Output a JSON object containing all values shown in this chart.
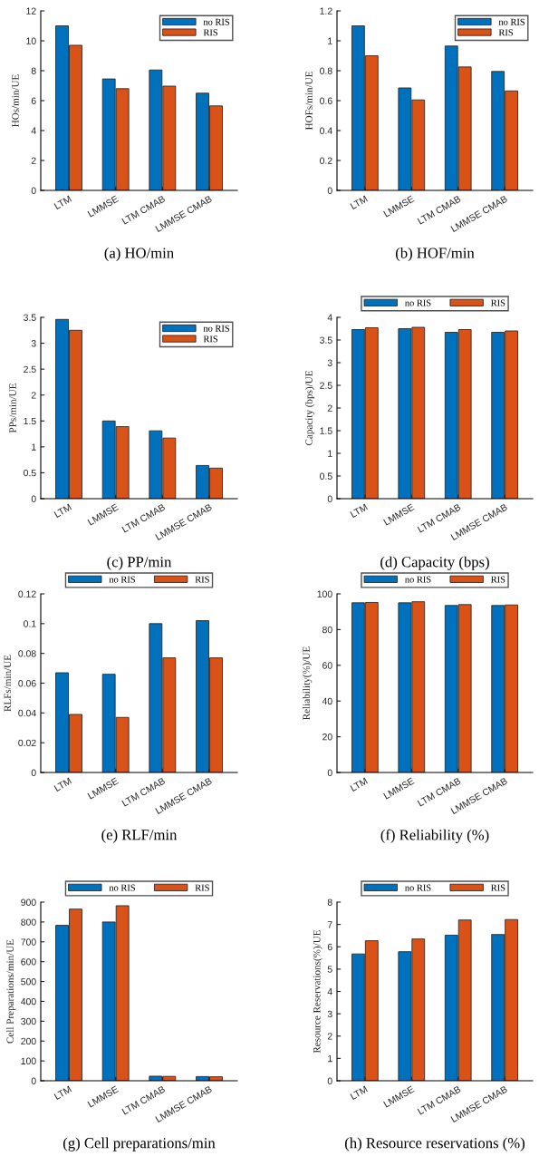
{
  "chart_data": [
    {
      "type": "bar",
      "title": "(a) HO/min",
      "ylabel": "HOs/min/UE",
      "categories": [
        "LTM",
        "LMMSE",
        "LTM CMAB",
        "LMMSE CMAB"
      ],
      "series": [
        {
          "name": "no RIS",
          "color": "#0072bd",
          "values": [
            11.0,
            7.45,
            8.05,
            6.5
          ]
        },
        {
          "name": "RIS",
          "color": "#d95319",
          "values": [
            9.7,
            6.8,
            6.97,
            5.65
          ]
        }
      ],
      "ylim": [
        0,
        12
      ],
      "yticks": [
        0,
        2,
        4,
        6,
        8,
        10,
        12
      ],
      "legend": "top right"
    },
    {
      "type": "bar",
      "title": "(b) HOF/min",
      "ylabel": "HOFs/min/UE",
      "categories": [
        "LTM",
        "LMMSE",
        "LTM CMAB",
        "LMMSE CMAB"
      ],
      "series": [
        {
          "name": "no RIS",
          "color": "#0072bd",
          "values": [
            1.1,
            0.685,
            0.965,
            0.795
          ]
        },
        {
          "name": "RIS",
          "color": "#d95319",
          "values": [
            0.9,
            0.605,
            0.825,
            0.665
          ]
        }
      ],
      "ylim": [
        0,
        1.2
      ],
      "yticks": [
        0,
        0.2,
        0.4,
        0.6,
        0.8,
        1,
        1.2
      ],
      "legend": "top right"
    },
    {
      "type": "bar",
      "title": "(c) PP/min",
      "ylabel": "PPs/min/UE",
      "categories": [
        "LTM",
        "LMMSE",
        "LTM CMAB",
        "LMMSE CMAB"
      ],
      "series": [
        {
          "name": "no RIS",
          "color": "#0072bd",
          "values": [
            3.46,
            1.5,
            1.31,
            0.64
          ]
        },
        {
          "name": "RIS",
          "color": "#d95319",
          "values": [
            3.25,
            1.39,
            1.17,
            0.59
          ]
        }
      ],
      "ylim": [
        0,
        3.5
      ],
      "yticks": [
        0,
        0.5,
        1,
        1.5,
        2,
        2.5,
        3,
        3.5
      ],
      "legend": "top right"
    },
    {
      "type": "bar",
      "title": "(d) Capacity (bps)",
      "ylabel": "Capacity (bps)/UE",
      "categories": [
        "LTM",
        "LMMSE",
        "LTM CMAB",
        "LMMSE CMAB"
      ],
      "series": [
        {
          "name": "no RIS",
          "color": "#0072bd",
          "values": [
            3.73,
            3.75,
            3.67,
            3.67
          ]
        },
        {
          "name": "RIS",
          "color": "#d95319",
          "values": [
            3.77,
            3.78,
            3.73,
            3.7
          ]
        }
      ],
      "ylim": [
        0,
        4
      ],
      "yticks": [
        0,
        0.5,
        1,
        1.5,
        2,
        2.5,
        3,
        3.5,
        4
      ],
      "legend": "top"
    },
    {
      "type": "bar",
      "title": "(e) RLF/min",
      "ylabel": "RLFs/min/UE",
      "categories": [
        "LTM",
        "LMMSE",
        "LTM CMAB",
        "LMMSE CMAB"
      ],
      "series": [
        {
          "name": "no RIS",
          "color": "#0072bd",
          "values": [
            0.067,
            0.066,
            0.1,
            0.102
          ]
        },
        {
          "name": "RIS",
          "color": "#d95319",
          "values": [
            0.039,
            0.037,
            0.077,
            0.077
          ]
        }
      ],
      "ylim": [
        0,
        0.12
      ],
      "yticks": [
        0,
        0.02,
        0.04,
        0.06,
        0.08,
        0.1,
        0.12
      ],
      "legend": "top"
    },
    {
      "type": "bar",
      "title": "(f) Reliability (%)",
      "ylabel": "Reliability(%)/UE",
      "categories": [
        "LTM",
        "LMMSE",
        "LTM CMAB",
        "LMMSE CMAB"
      ],
      "series": [
        {
          "name": "no RIS",
          "color": "#0072bd",
          "values": [
            95,
            95,
            93.5,
            93.5
          ]
        },
        {
          "name": "RIS",
          "color": "#d95319",
          "values": [
            95.2,
            95.6,
            94,
            93.8
          ]
        }
      ],
      "ylim": [
        0,
        100
      ],
      "yticks": [
        0,
        20,
        40,
        60,
        80,
        100
      ],
      "legend": "top"
    },
    {
      "type": "bar",
      "title": "(g) Cell preparations/min",
      "ylabel": "Cell Preparations/min/UE",
      "categories": [
        "LTM",
        "LMMSE",
        "LTM CMAB",
        "LMMSE CMAB"
      ],
      "series": [
        {
          "name": "no RIS",
          "color": "#0072bd",
          "values": [
            783,
            800,
            23,
            21
          ]
        },
        {
          "name": "RIS",
          "color": "#d95319",
          "values": [
            865,
            882,
            22,
            20
          ]
        }
      ],
      "ylim": [
        0,
        900
      ],
      "yticks": [
        0,
        100,
        200,
        300,
        400,
        500,
        600,
        700,
        800,
        900
      ],
      "legend": "top"
    },
    {
      "type": "bar",
      "title": "(h) Resource reservations (%)",
      "ylabel": "Resource Reservations(%)/UE",
      "categories": [
        "LTM",
        "LMMSE",
        "LTM CMAB",
        "LMMSE CMAB"
      ],
      "series": [
        {
          "name": "no RIS",
          "color": "#0072bd",
          "values": [
            5.68,
            5.78,
            6.52,
            6.55
          ]
        },
        {
          "name": "RIS",
          "color": "#d95319",
          "values": [
            6.27,
            6.35,
            7.2,
            7.22
          ]
        }
      ],
      "ylim": [
        0,
        8
      ],
      "yticks": [
        0,
        1,
        2,
        3,
        4,
        5,
        6,
        7,
        8
      ],
      "legend": "top"
    }
  ]
}
